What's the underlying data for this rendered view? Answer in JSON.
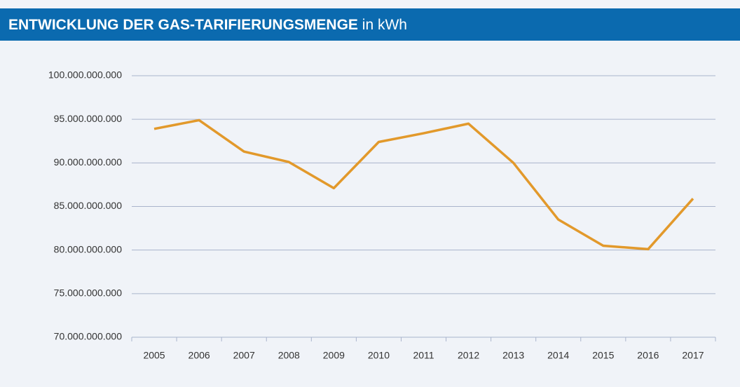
{
  "chart_data": {
    "type": "line",
    "title": "ENTWICKLUNG DER GAS-TARIFIERUNGSMENGE",
    "subtitle": "in kWh",
    "categories": [
      "2005",
      "2006",
      "2007",
      "2008",
      "2009",
      "2010",
      "2011",
      "2012",
      "2013",
      "2014",
      "2015",
      "2016",
      "2017"
    ],
    "series": [
      {
        "color": "#e2992b",
        "values": [
          93900000000,
          94900000000,
          91300000000,
          90100000000,
          87100000000,
          92400000000,
          93400000000,
          94500000000,
          90000000000,
          83500000000,
          80500000000,
          80100000000,
          85900000000
        ]
      }
    ],
    "ylim": [
      70000000000,
      100000000000
    ],
    "yticks": [
      {
        "value": 70000000000,
        "label": "70.000.000.000"
      },
      {
        "value": 75000000000,
        "label": "75.000.000.000"
      },
      {
        "value": 80000000000,
        "label": "80.000.000.000"
      },
      {
        "value": 85000000000,
        "label": "85.000.000.000"
      },
      {
        "value": 90000000000,
        "label": "90.000.000.000"
      },
      {
        "value": 95000000000,
        "label": "95.000.000.000"
      },
      {
        "value": 100000000000,
        "label": "100.000.000.000"
      }
    ],
    "grid": true
  }
}
